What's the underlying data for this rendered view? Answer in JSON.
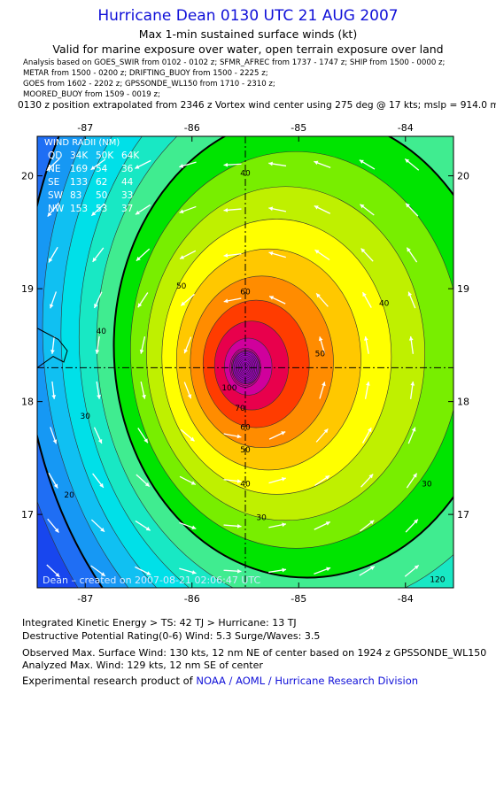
{
  "header": {
    "title": "Hurricane Dean 0130 UTC 21 AUG 2007",
    "subtitle": "Max 1-min sustained surface winds (kt)",
    "validity": "Valid for marine exposure over water, open terrain exposure over land",
    "sources": [
      "Analysis based on  GOES_SWIR from 0102 - 0102 z;  SFMR_AFREC from 1737 - 1747 z;  SHIP from 1500 - 0000 z;",
      "METAR from 1500 - 0200 z;  DRIFTING_BUOY from 1500 - 2225 z;",
      "GOES from 1602 - 2202 z;  GPSSONDE_WL150 from 1710 - 2310 z;",
      "MOORED_BUOY from 1509 - 0019 z;"
    ],
    "position_note": "0130 z position extrapolated from 2346 z Vortex wind center using 275 deg @ 17 kts; mslp = 914.0 mb"
  },
  "chart_data": {
    "type": "contour",
    "x_ticks": [
      "-87",
      "-86",
      "-85",
      "-84"
    ],
    "x_tick_values": [
      -87,
      -86,
      -85,
      -84
    ],
    "y_ticks": [
      "20",
      "19",
      "18",
      "17"
    ],
    "y_tick_values": [
      20,
      19,
      18,
      17
    ],
    "xlim": [
      -87.45,
      -83.55
    ],
    "ylim": [
      16.35,
      20.35
    ],
    "center": {
      "lon": -85.5,
      "lat": 18.3
    },
    "contour_labels": [
      {
        "text": "40",
        "lon": -85.5,
        "lat": 20.0
      },
      {
        "text": "40",
        "lon": -84.2,
        "lat": 18.85
      },
      {
        "text": "40",
        "lon": -86.85,
        "lat": 18.6
      },
      {
        "text": "40",
        "lon": -85.5,
        "lat": 17.25
      },
      {
        "text": "50",
        "lon": -86.1,
        "lat": 19.0
      },
      {
        "text": "50",
        "lon": -84.8,
        "lat": 18.4
      },
      {
        "text": "50",
        "lon": -85.5,
        "lat": 17.55
      },
      {
        "text": "60",
        "lon": -85.5,
        "lat": 18.95
      },
      {
        "text": "60",
        "lon": -85.5,
        "lat": 17.75
      },
      {
        "text": "70",
        "lon": -85.55,
        "lat": 17.92
      },
      {
        "text": "100",
        "lon": -85.65,
        "lat": 18.1
      },
      {
        "text": "30",
        "lon": -87.0,
        "lat": 17.85
      },
      {
        "text": "30",
        "lon": -85.35,
        "lat": 16.95
      },
      {
        "text": "30",
        "lon": -83.8,
        "lat": 17.25
      },
      {
        "text": "20",
        "lon": -87.15,
        "lat": 17.15
      },
      {
        "text": "120",
        "lon": -83.7,
        "lat": 16.4
      }
    ],
    "wind_radii": {
      "title": "WIND RADII (NM)",
      "header": [
        "QD",
        "34K",
        "50K",
        "64K"
      ],
      "rows": [
        [
          "NE",
          "169",
          "54",
          "36"
        ],
        [
          "SE",
          "133",
          "62",
          "44"
        ],
        [
          "SW",
          "83",
          "50",
          "33"
        ],
        [
          "NW",
          "153",
          "53",
          "37"
        ]
      ]
    },
    "credit": "Dean – created on 2007-08-21 02:06:47 UTC",
    "colors": [
      "#1846ee",
      "#1f6ef4",
      "#1698f4",
      "#10c0f2",
      "#00e0e8",
      "#18e8c4",
      "#40ec90",
      "#00e400",
      "#78ee00",
      "#bff000",
      "#ffff00",
      "#ffc800",
      "#ff8c00",
      "#ff3c00",
      "#e8004c",
      "#d0009c",
      "#a800c8"
    ]
  },
  "footer": {
    "ike": "Integrated Kinetic Energy > TS: 42 TJ   > Hurricane: 13 TJ",
    "destructive": "Destructive Potential Rating(0-6)   Wind: 5.3 Surge/Waves: 3.5",
    "observed": "Observed Max. Surface Wind: 130 kts, 12 nm NE of center based on 1924 z GPSSONDE_WL150",
    "analyzed": "Analyzed Max. Wind: 129 kts, 12 nm SE of center",
    "product_prefix": "Experimental research product of ",
    "product_link": "NOAA / AOML / Hurricane Research Division"
  }
}
